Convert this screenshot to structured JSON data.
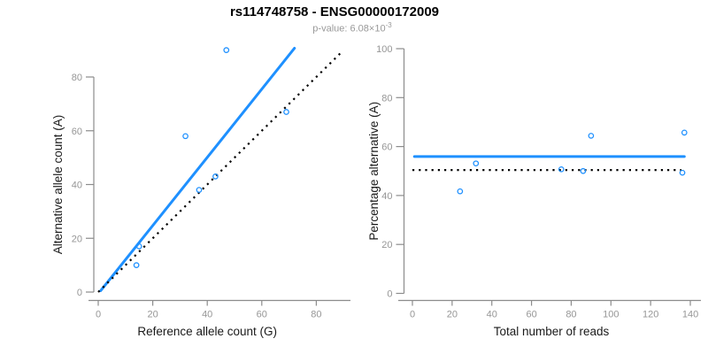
{
  "title": "rs114748758 - ENSG00000172009",
  "subtitle": {
    "prefix": "p-value: 6.08×10",
    "exponent": "-3"
  },
  "colors": {
    "accent_blue": "#1E90FF",
    "dotted_black": "#000000",
    "axis_line": "#8C8C8C",
    "tick_label": "#969696",
    "axis_title": "#1a1a1a",
    "title": "#000000",
    "subtitle": "#999999"
  },
  "chart_data": [
    {
      "type": "scatter",
      "xlabel": "Reference allele count (G)",
      "ylabel": "Alternative allele count (A)",
      "xlim": [
        0,
        90
      ],
      "ylim": [
        0,
        91
      ],
      "xticks": [
        0,
        20,
        40,
        60,
        80
      ],
      "yticks": [
        0,
        20,
        40,
        60,
        80
      ],
      "grid": false,
      "legend": "none",
      "points": [
        [
          14,
          10
        ],
        [
          15,
          17
        ],
        [
          32,
          58
        ],
        [
          37,
          38
        ],
        [
          43,
          43
        ],
        [
          47,
          90
        ],
        [
          69,
          67
        ]
      ],
      "lines": [
        {
          "name": "fitted-ratio-line",
          "style": "solid",
          "color": "#1E90FF",
          "x1": 0.9,
          "y1": 0.5,
          "x2": 72,
          "y2": 90.7
        },
        {
          "name": "identity-line",
          "style": "dotted",
          "color": "#000000",
          "x1": 0,
          "y1": 0,
          "x2": 89.5,
          "y2": 89.5
        }
      ]
    },
    {
      "type": "scatter",
      "xlabel": "Total number of reads",
      "ylabel": "Percentage alternative (A)",
      "xlim": [
        0,
        140
      ],
      "ylim": [
        0,
        100
      ],
      "xticks": [
        0,
        20,
        40,
        60,
        80,
        100,
        120,
        140
      ],
      "yticks": [
        0,
        20,
        40,
        60,
        80,
        100
      ],
      "grid": false,
      "legend": "none",
      "points": [
        [
          24,
          41.7
        ],
        [
          32,
          53.1
        ],
        [
          75,
          50.7
        ],
        [
          86,
          50
        ],
        [
          90,
          64.4
        ],
        [
          136,
          49.3
        ],
        [
          137,
          65.7
        ]
      ],
      "lines": [
        {
          "name": "mean-percentage-line",
          "style": "solid",
          "color": "#1E90FF",
          "x1": 1,
          "y1": 55.9,
          "x2": 137,
          "y2": 55.9
        },
        {
          "name": "expected-50pct-line",
          "style": "dotted",
          "color": "#000000",
          "x1": 0,
          "y1": 50.4,
          "x2": 135.5,
          "y2": 50.4
        }
      ]
    }
  ]
}
